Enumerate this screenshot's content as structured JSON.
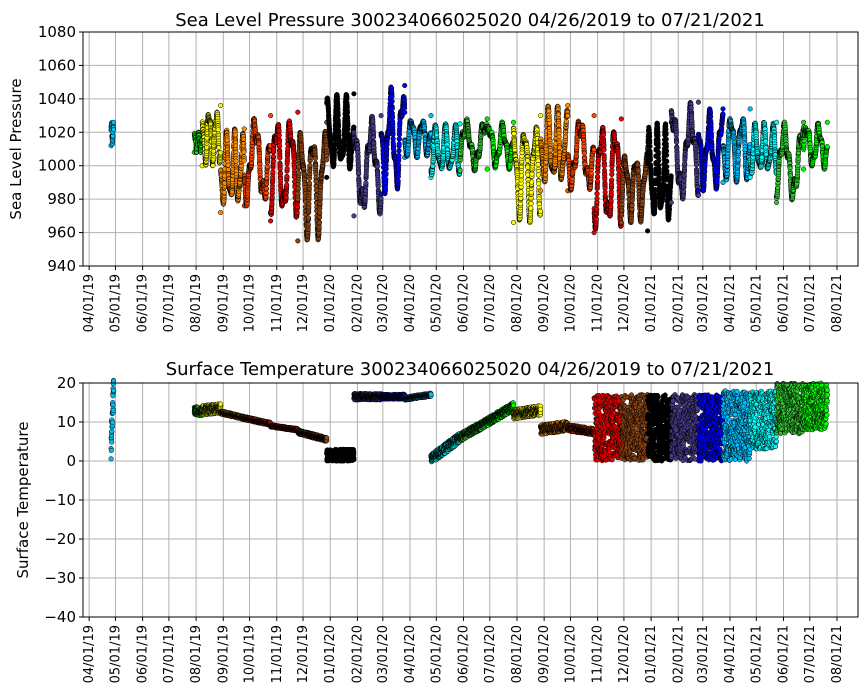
{
  "chart_data": [
    {
      "type": "scatter",
      "title": "Sea Level Pressure 300234066025020  04/26/2019 to 07/21/2021",
      "xlabel": "",
      "ylabel": "Sea Level Pressure",
      "ylim": [
        940,
        1080
      ],
      "yticks": [
        940,
        960,
        980,
        1000,
        1020,
        1040,
        1060,
        1080
      ],
      "xlim": [
        "2019-03-25",
        "2021-08-25"
      ],
      "xticks": [
        "04/01/19",
        "05/01/19",
        "06/01/19",
        "07/01/19",
        "08/01/19",
        "09/01/19",
        "10/01/19",
        "11/01/19",
        "12/01/19",
        "01/01/20",
        "02/01/20",
        "03/01/20",
        "04/01/20",
        "05/01/20",
        "06/01/20",
        "07/01/20",
        "08/01/20",
        "09/01/20",
        "10/01/20",
        "11/01/20",
        "12/01/20",
        "01/01/21",
        "02/01/21",
        "03/01/21",
        "04/01/21",
        "05/01/21",
        "06/01/21",
        "07/01/21",
        "08/01/21"
      ],
      "grid": true,
      "segments": [
        {
          "start": "2019-04-26",
          "end": "2019-04-29",
          "color": "#00c0f0",
          "min": 1012,
          "max": 1026
        },
        {
          "start": "2019-07-30",
          "end": "2019-08-08",
          "color": "#20e020",
          "min": 1008,
          "max": 1020
        },
        {
          "start": "2019-08-08",
          "end": "2019-08-29",
          "color": "#f5f500",
          "min": 1000,
          "max": 1036
        },
        {
          "start": "2019-08-29",
          "end": "2019-09-25",
          "color": "#ff8c00",
          "min": 972,
          "max": 1022
        },
        {
          "start": "2019-09-25",
          "end": "2019-10-25",
          "color": "#ff4500",
          "min": 976,
          "max": 1030
        },
        {
          "start": "2019-10-25",
          "end": "2019-11-25",
          "color": "#ee0000",
          "min": 967,
          "max": 1032
        },
        {
          "start": "2019-11-25",
          "end": "2019-12-28",
          "color": "#8b4513",
          "min": 955,
          "max": 1026
        },
        {
          "start": "2019-12-28",
          "end": "2020-01-28",
          "color": "#000000",
          "min": 993,
          "max": 1043
        },
        {
          "start": "2020-01-28",
          "end": "2020-02-28",
          "color": "#483d8b",
          "min": 970,
          "max": 1030
        },
        {
          "start": "2020-02-28",
          "end": "2020-03-26",
          "color": "#0000ff",
          "min": 983,
          "max": 1048
        },
        {
          "start": "2020-03-26",
          "end": "2020-04-25",
          "color": "#00bfff",
          "min": 1005,
          "max": 1030
        },
        {
          "start": "2020-04-25",
          "end": "2020-05-28",
          "color": "#00ffff",
          "min": 993,
          "max": 1025
        },
        {
          "start": "2020-05-28",
          "end": "2020-06-28",
          "color": "#32cd32",
          "min": 997,
          "max": 1028
        },
        {
          "start": "2020-06-28",
          "end": "2020-07-28",
          "color": "#00ff00",
          "min": 998,
          "max": 1026
        },
        {
          "start": "2020-07-28",
          "end": "2020-08-28",
          "color": "#ffff00",
          "min": 966,
          "max": 1030
        },
        {
          "start": "2020-08-28",
          "end": "2020-09-28",
          "color": "#ff8c00",
          "min": 985,
          "max": 1036
        },
        {
          "start": "2020-09-28",
          "end": "2020-10-28",
          "color": "#ff4500",
          "min": 985,
          "max": 1030
        },
        {
          "start": "2020-10-28",
          "end": "2020-11-28",
          "color": "#ee0000",
          "min": 960,
          "max": 1028
        },
        {
          "start": "2020-11-28",
          "end": "2020-12-28",
          "color": "#8b4513",
          "min": 966,
          "max": 1010
        },
        {
          "start": "2020-12-28",
          "end": "2021-01-24",
          "color": "#000000",
          "min": 961,
          "max": 1026
        },
        {
          "start": "2021-01-24",
          "end": "2021-02-24",
          "color": "#483d8b",
          "min": 978,
          "max": 1038
        },
        {
          "start": "2021-02-24",
          "end": "2021-03-24",
          "color": "#0000ff",
          "min": 985,
          "max": 1034
        },
        {
          "start": "2021-03-24",
          "end": "2021-04-24",
          "color": "#00bfff",
          "min": 990,
          "max": 1034
        },
        {
          "start": "2021-04-24",
          "end": "2021-05-24",
          "color": "#00ffff",
          "min": 993,
          "max": 1026
        },
        {
          "start": "2021-05-24",
          "end": "2021-06-24",
          "color": "#32cd32",
          "min": 978,
          "max": 1026
        },
        {
          "start": "2021-06-24",
          "end": "2021-07-21",
          "color": "#00ff00",
          "min": 998,
          "max": 1026
        }
      ]
    },
    {
      "type": "scatter",
      "title": "Surface Temperature 300234066025020  04/26/2019 to 07/21/2021",
      "xlabel": "",
      "ylabel": "Surface Temperature",
      "ylim": [
        -40,
        20
      ],
      "yticks": [
        -40,
        -30,
        -20,
        -10,
        0,
        10,
        20
      ],
      "xlim": [
        "2019-03-25",
        "2021-08-25"
      ],
      "xticks": [
        "04/01/19",
        "05/01/19",
        "06/01/19",
        "07/01/19",
        "08/01/19",
        "09/01/19",
        "10/01/19",
        "11/01/19",
        "12/01/19",
        "01/01/20",
        "02/01/20",
        "03/01/20",
        "04/01/20",
        "05/01/20",
        "06/01/20",
        "07/01/20",
        "08/01/20",
        "09/01/20",
        "10/01/20",
        "11/01/20",
        "12/01/20",
        "01/01/21",
        "02/01/21",
        "03/01/21",
        "04/01/21",
        "05/01/21",
        "06/01/21",
        "07/01/21",
        "08/01/21"
      ],
      "grid": true,
      "segments": [
        {
          "start": "2019-04-26",
          "end": "2019-04-29",
          "color": "#00c0f0",
          "from": 4,
          "to": 19,
          "jitter": 4
        },
        {
          "start": "2019-07-30",
          "end": "2019-08-08",
          "color": "#20e020",
          "from": 13,
          "to": 12.5,
          "jitter": 1
        },
        {
          "start": "2019-08-08",
          "end": "2019-08-29",
          "color": "#f5f500",
          "from": 13,
          "to": 13.5,
          "jitter": 1.2
        },
        {
          "start": "2019-08-29",
          "end": "2019-09-25",
          "color": "#ff8c00",
          "from": 12.5,
          "to": 11,
          "jitter": 0.4
        },
        {
          "start": "2019-09-25",
          "end": "2019-10-25",
          "color": "#ff4500",
          "from": 11,
          "to": 9.5,
          "jitter": 0.4
        },
        {
          "start": "2019-10-25",
          "end": "2019-11-25",
          "color": "#ee0000",
          "from": 9,
          "to": 8,
          "jitter": 0.3
        },
        {
          "start": "2019-11-25",
          "end": "2019-12-28",
          "color": "#8b4513",
          "from": 7.5,
          "to": 5.5,
          "jitter": 0.5
        },
        {
          "start": "2019-12-28",
          "end": "2020-01-28",
          "color": "#000000",
          "from": 1.5,
          "to": 1.5,
          "jitter": 1.5
        },
        {
          "start": "2020-01-28",
          "end": "2020-02-28",
          "color": "#483d8b",
          "from": 16.5,
          "to": 16.5,
          "jitter": 0.8
        },
        {
          "start": "2020-02-28",
          "end": "2020-03-26",
          "color": "#0000ff",
          "from": 16.5,
          "to": 16.5,
          "jitter": 0.6
        },
        {
          "start": "2020-03-26",
          "end": "2020-04-25",
          "color": "#00bfff",
          "from": 16,
          "to": 17,
          "jitter": 0.4
        },
        {
          "start": "2020-04-25",
          "end": "2020-05-28",
          "color": "#00ffff",
          "from": 0.5,
          "to": 6,
          "jitter": 1.2
        },
        {
          "start": "2020-05-28",
          "end": "2020-06-28",
          "color": "#32cd32",
          "from": 6,
          "to": 10,
          "jitter": 1
        },
        {
          "start": "2020-06-28",
          "end": "2020-07-28",
          "color": "#00ff00",
          "from": 10,
          "to": 14,
          "jitter": 1
        },
        {
          "start": "2020-07-28",
          "end": "2020-08-28",
          "color": "#ffff00",
          "from": 12,
          "to": 13,
          "jitter": 1.2
        },
        {
          "start": "2020-08-28",
          "end": "2020-09-28",
          "color": "#ff8c00",
          "from": 8,
          "to": 9,
          "jitter": 1.2
        },
        {
          "start": "2020-09-28",
          "end": "2020-10-28",
          "color": "#ff4500",
          "from": 8.5,
          "to": 7.5,
          "jitter": 0.8
        },
        {
          "start": "2020-10-28",
          "end": "2020-11-28",
          "color": "#ee0000",
          "from": 0,
          "to": 17,
          "jitter": 0,
          "band": true
        },
        {
          "start": "2020-11-28",
          "end": "2020-12-28",
          "color": "#8b4513",
          "from": 0,
          "to": 17,
          "jitter": 0,
          "band": true
        },
        {
          "start": "2020-12-28",
          "end": "2021-01-24",
          "color": "#000000",
          "from": 0,
          "to": 17,
          "jitter": 0,
          "band": true
        },
        {
          "start": "2021-01-24",
          "end": "2021-02-24",
          "color": "#483d8b",
          "from": 0,
          "to": 17,
          "jitter": 0,
          "band": true
        },
        {
          "start": "2021-02-24",
          "end": "2021-03-24",
          "color": "#0000ff",
          "from": 0,
          "to": 17,
          "jitter": 0,
          "band": true
        },
        {
          "start": "2021-03-24",
          "end": "2021-04-24",
          "color": "#00bfff",
          "from": 0,
          "to": 18,
          "jitter": 0,
          "band": true
        },
        {
          "start": "2021-04-24",
          "end": "2021-05-24",
          "color": "#00ffff",
          "from": 3,
          "to": 18,
          "jitter": 0,
          "band": true
        },
        {
          "start": "2021-05-24",
          "end": "2021-06-24",
          "color": "#32cd32",
          "from": 7,
          "to": 20,
          "jitter": 0,
          "band": true
        },
        {
          "start": "2021-06-24",
          "end": "2021-07-21",
          "color": "#00ff00",
          "from": 8,
          "to": 20,
          "jitter": 0,
          "band": true
        }
      ]
    }
  ]
}
